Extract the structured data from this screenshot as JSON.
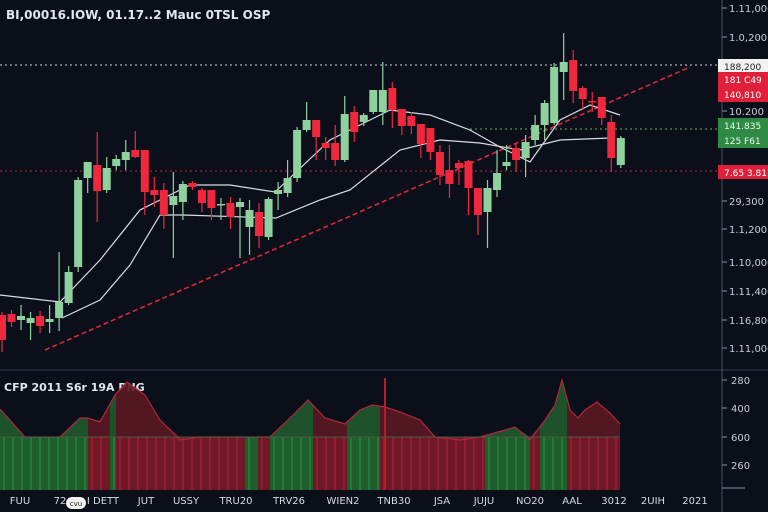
{
  "header": {
    "title": "BI,00016.IOW, 01.17..2 Mauc 0TSL OSP"
  },
  "oscillator": {
    "title": "CFP 2011 S6r 19A PNG",
    "axis_ticks": [
      "280",
      "400",
      "600",
      "260"
    ],
    "area": [
      [
        0,
        28
      ],
      [
        25,
        0
      ],
      [
        60,
        0
      ],
      [
        80,
        19
      ],
      [
        88,
        19
      ],
      [
        100,
        15
      ],
      [
        115,
        42
      ],
      [
        127,
        55
      ],
      [
        145,
        42
      ],
      [
        160,
        17
      ],
      [
        180,
        -3
      ],
      [
        200,
        0
      ],
      [
        270,
        0
      ],
      [
        290,
        19
      ],
      [
        308,
        37
      ],
      [
        325,
        19
      ],
      [
        345,
        13
      ],
      [
        360,
        27
      ],
      [
        372,
        32
      ],
      [
        385,
        30
      ],
      [
        400,
        25
      ],
      [
        420,
        17
      ],
      [
        435,
        0
      ],
      [
        460,
        -3
      ],
      [
        480,
        0
      ],
      [
        505,
        7
      ],
      [
        515,
        10
      ],
      [
        530,
        -3
      ],
      [
        545,
        17
      ],
      [
        555,
        32
      ],
      [
        562,
        57
      ],
      [
        570,
        27
      ],
      [
        578,
        19
      ],
      [
        585,
        27
      ],
      [
        597,
        35
      ],
      [
        610,
        24
      ],
      [
        620,
        13
      ]
    ],
    "segments": [
      {
        "from": 0,
        "to": 88,
        "color": "green"
      },
      {
        "from": 88,
        "to": 110,
        "color": "red"
      },
      {
        "from": 110,
        "to": 116,
        "color": "green"
      },
      {
        "from": 116,
        "to": 245,
        "color": "red"
      },
      {
        "from": 245,
        "to": 258,
        "color": "green"
      },
      {
        "from": 258,
        "to": 270,
        "color": "red"
      },
      {
        "from": 270,
        "to": 313,
        "color": "green"
      },
      {
        "from": 313,
        "to": 347,
        "color": "red"
      },
      {
        "from": 347,
        "to": 380,
        "color": "green"
      },
      {
        "from": 380,
        "to": 485,
        "color": "red"
      },
      {
        "from": 485,
        "to": 530,
        "color": "green"
      },
      {
        "from": 530,
        "to": 540,
        "color": "red"
      },
      {
        "from": 540,
        "to": 567,
        "color": "green"
      },
      {
        "from": 567,
        "to": 620,
        "color": "red"
      }
    ]
  },
  "price_axis": {
    "ticks": [
      "1.11,000",
      "1.0,200",
      "10.200",
      "29,300",
      "1.1,200",
      "1.10,000",
      "1.11,400",
      "1.16,800",
      "1.11,000"
    ],
    "tags": [
      {
        "lines": [
          "188,200"
        ],
        "style": "white"
      },
      {
        "lines": [
          "181 C49",
          "140,810"
        ],
        "style": "red"
      },
      {
        "lines": [
          "141.835",
          "125 F61"
        ],
        "style": "green"
      },
      {
        "lines": [
          "7.65 3.81"
        ],
        "style": "red"
      }
    ]
  },
  "time_axis": {
    "labels": [
      "FUU",
      "72",
      "I DETT",
      "JUT",
      "USSY",
      "TRU20",
      "TRV26",
      "WIEN2",
      "TNB30",
      "JSA",
      "JUJU",
      "NO20",
      "AAL",
      "3012",
      "2UIH",
      "2021"
    ],
    "badge": "cvu"
  },
  "colors": {
    "background": "#0b0f1a",
    "up": "#8fd19e",
    "down": "#f0283e",
    "ma": "#d9dce4",
    "trend": "#d8283a",
    "osc_green": "#1f5a2c",
    "osc_red": "#6e1a24"
  },
  "chart_data": {
    "type": "candlestick",
    "ylim": [
      0,
      370
    ],
    "grid": false,
    "candles": [
      [
        55,
        58,
        18,
        30
      ],
      [
        56,
        60,
        43,
        48
      ],
      [
        50,
        65,
        40,
        54
      ],
      [
        47,
        58,
        30,
        52
      ],
      [
        54,
        59,
        37,
        44
      ],
      [
        48,
        65,
        37,
        51
      ],
      [
        52,
        118,
        39,
        68
      ],
      [
        67,
        104,
        65,
        98
      ],
      [
        103,
        193,
        98,
        190
      ],
      [
        192,
        208,
        177,
        208
      ],
      [
        205,
        238,
        148,
        179
      ],
      [
        180,
        213,
        177,
        202
      ],
      [
        204,
        215,
        200,
        211
      ],
      [
        210,
        230,
        200,
        218
      ],
      [
        220,
        239,
        212,
        213
      ],
      [
        220,
        220,
        155,
        178
      ],
      [
        180,
        193,
        163,
        175
      ],
      [
        180,
        187,
        141,
        155
      ],
      [
        165,
        198,
        112,
        174
      ],
      [
        168,
        189,
        150,
        186
      ],
      [
        187,
        189,
        180,
        183
      ],
      [
        180,
        182,
        158,
        167
      ],
      [
        180,
        180,
        150,
        162
      ],
      [
        165,
        172,
        150,
        166
      ],
      [
        167,
        173,
        141,
        153
      ],
      [
        163,
        172,
        112,
        168
      ],
      [
        143,
        170,
        115,
        160
      ],
      [
        158,
        167,
        122,
        134
      ],
      [
        133,
        173,
        130,
        171
      ],
      [
        176,
        188,
        160,
        180
      ],
      [
        177,
        210,
        173,
        192
      ],
      [
        192,
        243,
        188,
        240
      ],
      [
        240,
        268,
        238,
        250
      ],
      [
        250,
        250,
        210,
        233
      ],
      [
        227,
        233,
        210,
        222
      ],
      [
        227,
        245,
        204,
        210
      ],
      [
        210,
        274,
        208,
        256
      ],
      [
        258,
        264,
        228,
        238
      ],
      [
        248,
        257,
        244,
        255
      ],
      [
        258,
        280,
        256,
        280
      ],
      [
        258,
        308,
        245,
        280
      ],
      [
        282,
        288,
        242,
        260
      ],
      [
        261,
        261,
        235,
        244
      ],
      [
        254,
        258,
        236,
        244
      ],
      [
        246,
        246,
        212,
        226
      ],
      [
        242,
        242,
        210,
        218
      ],
      [
        218,
        225,
        185,
        195
      ],
      [
        200,
        225,
        172,
        186
      ],
      [
        207,
        210,
        185,
        202
      ],
      [
        209,
        210,
        155,
        182
      ],
      [
        182,
        182,
        135,
        155
      ],
      [
        158,
        190,
        122,
        182
      ],
      [
        180,
        220,
        173,
        197
      ],
      [
        204,
        225,
        200,
        208
      ],
      [
        222,
        227,
        198,
        210
      ],
      [
        212,
        235,
        193,
        228
      ],
      [
        230,
        255,
        225,
        245
      ],
      [
        245,
        270,
        230,
        267
      ],
      [
        247,
        307,
        245,
        303
      ],
      [
        298,
        337,
        270,
        308
      ],
      [
        310,
        320,
        267,
        279
      ],
      [
        282,
        284,
        260,
        271
      ],
      [
        269,
        278,
        258,
        268
      ],
      [
        273,
        273,
        245,
        252
      ],
      [
        248,
        255,
        198,
        212
      ],
      [
        205,
        234,
        202,
        232
      ]
    ],
    "ma_fast": [
      [
        0,
        75
      ],
      [
        60,
        68
      ],
      [
        100,
        110
      ],
      [
        140,
        160
      ],
      [
        190,
        185
      ],
      [
        230,
        185
      ],
      [
        275,
        178
      ],
      [
        330,
        230
      ],
      [
        390,
        260
      ],
      [
        430,
        255
      ],
      [
        470,
        240
      ],
      [
        500,
        223
      ],
      [
        530,
        208
      ],
      [
        560,
        250
      ],
      [
        590,
        265
      ],
      [
        620,
        255
      ]
    ],
    "ma_slow": [
      [
        62,
        52
      ],
      [
        100,
        70
      ],
      [
        130,
        105
      ],
      [
        160,
        155
      ],
      [
        183,
        155
      ],
      [
        276,
        152
      ],
      [
        320,
        170
      ],
      [
        350,
        180
      ],
      [
        400,
        220
      ],
      [
        440,
        230
      ],
      [
        480,
        227
      ],
      [
        520,
        220
      ],
      [
        560,
        230
      ],
      [
        610,
        232
      ]
    ],
    "trendline": [
      [
        45,
        20
      ],
      [
        690,
        303
      ]
    ],
    "levels": [
      {
        "value": 305,
        "color": "white"
      },
      {
        "value": 241,
        "color": "green"
      },
      {
        "value": 199,
        "color": "red"
      }
    ]
  }
}
